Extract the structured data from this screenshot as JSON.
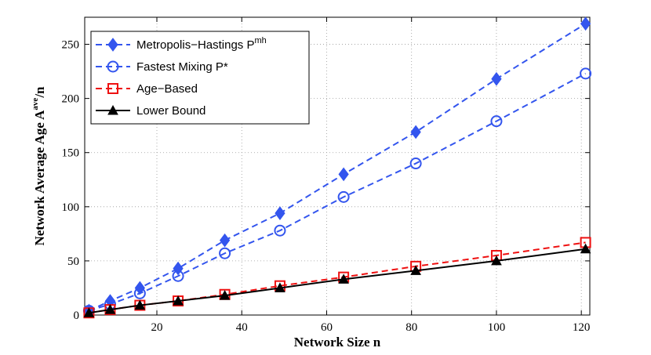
{
  "chart_data": {
    "type": "line",
    "xlabel": "Network Size n",
    "ylabel": {
      "main": "Network Average Age A",
      "sup": "ave",
      "suffix": "/n"
    },
    "xlim": [
      3,
      122
    ],
    "ylim": [
      0,
      275
    ],
    "xticks": [
      20,
      40,
      60,
      80,
      100,
      120
    ],
    "yticks": [
      0,
      50,
      100,
      150,
      200,
      250
    ],
    "grid": true,
    "legend_position": "top-left",
    "x": [
      4,
      9,
      16,
      25,
      36,
      49,
      64,
      81,
      100,
      121
    ],
    "series": [
      {
        "name": "Metropolis−Hastings P",
        "sup": "mh",
        "color": "#3355ee",
        "style": "dashed",
        "marker": "diamond",
        "values": [
          4,
          13,
          25,
          43,
          69,
          94,
          130,
          169,
          218,
          269
        ]
      },
      {
        "name": "Fastest Mixing P*",
        "sup": "",
        "color": "#3355ee",
        "style": "dashed",
        "marker": "circle",
        "values": [
          4,
          10,
          20,
          36,
          57,
          78,
          109,
          140,
          179,
          223
        ]
      },
      {
        "name": "Age−Based",
        "sup": "",
        "color": "#ee1111",
        "style": "dashed",
        "marker": "square",
        "values": [
          2,
          5,
          9,
          13,
          19,
          27,
          35,
          45,
          55,
          67
        ]
      },
      {
        "name": "Lower Bound",
        "sup": "",
        "color": "#000000",
        "style": "solid",
        "marker": "triangle",
        "values": [
          2,
          5,
          9,
          13,
          18,
          25,
          33,
          41,
          50,
          61
        ]
      }
    ]
  }
}
